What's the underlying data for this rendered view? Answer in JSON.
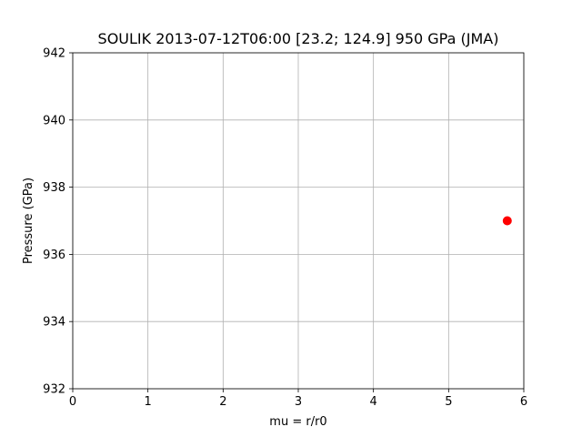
{
  "chart_data": {
    "type": "scatter",
    "title": "SOULIK 2013-07-12T06:00 [23.2; 124.9] 950 GPa (JMA)",
    "xlabel": "mu = r/r0",
    "ylabel": "Pressure (GPa)",
    "xlim": [
      0,
      6
    ],
    "ylim": [
      932,
      942
    ],
    "xticks": [
      "0",
      "1",
      "2",
      "3",
      "4",
      "5",
      "6"
    ],
    "yticks": [
      "932",
      "934",
      "936",
      "938",
      "940",
      "942"
    ],
    "grid": true,
    "series": [
      {
        "color": "#ff0000",
        "marker": "circle",
        "points": [
          {
            "x": 5.78,
            "y": 937.0
          }
        ]
      }
    ]
  }
}
